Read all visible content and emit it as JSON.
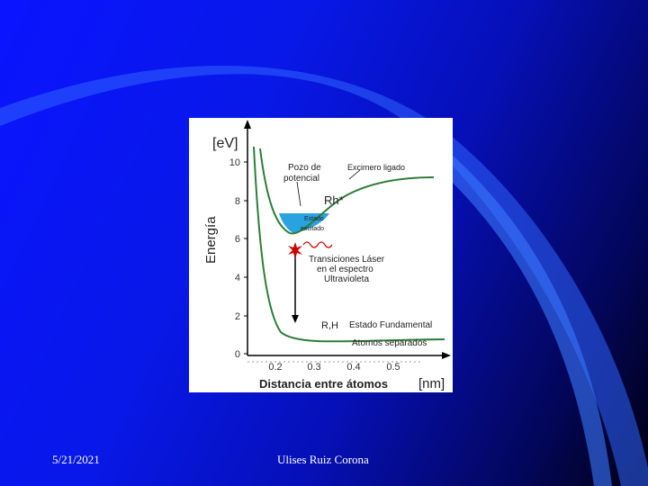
{
  "slide": {
    "date": "5/21/2021",
    "author": "Ulises Ruiz Corona"
  },
  "figure": {
    "y_unit": "[eV]",
    "y_axis_label": "Energía",
    "x_axis_label": "Distancia entre átomos",
    "x_unit": "[nm]",
    "y_ticks": [
      "10",
      "8",
      "6",
      "4",
      "2",
      "0"
    ],
    "x_ticks": [
      "0.2",
      "0.3",
      "0.4",
      "0.5"
    ],
    "labels": {
      "pozo_line1": "Pozo de",
      "pozo_line2": "potencial",
      "excimero": "Excimero ligado",
      "rh_star": "Rh*",
      "estado_excitado_line1": "Estado",
      "estado_excitado_line2": "excitado",
      "transiciones_line1": "Transiciones Láser",
      "transiciones_line2": "en el espectro",
      "transiciones_line3": "Ultravioleta",
      "rh": "R,H",
      "estado_fundamental": "Estado Fundamental",
      "atomos_separados": "Atomos separados"
    },
    "colors": {
      "curve": "#2e7d3a",
      "well_fill": "#29a3e0",
      "arrow": "#000000",
      "star": "#cc0000",
      "photon": "#cc0000"
    }
  }
}
